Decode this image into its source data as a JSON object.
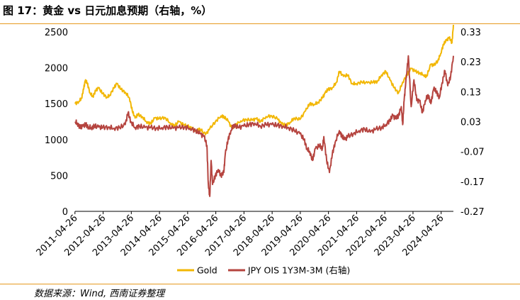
{
  "figure": {
    "title": "图 17：黄金 vs 日元加息预期（右轴，%）",
    "source": "数据来源：Wind, 西南证券整理"
  },
  "chart_data": {
    "type": "line",
    "title": "黄金 vs 日元加息预期（右轴，%）",
    "x_tick_labels": [
      "2011-04-26",
      "2012-04-26",
      "2013-04-26",
      "2014-04-26",
      "2015-04-26",
      "2016-04-26",
      "2017-04-26",
      "2018-04-26",
      "2019-04-26",
      "2020-04-26",
      "2021-04-26",
      "2022-04-26",
      "2023-04-26",
      "2024-04-26"
    ],
    "x_range": [
      2011.32,
      2024.75
    ],
    "y_left": {
      "range": [
        0,
        2500
      ],
      "ticks": [
        "0",
        "500",
        "1000",
        "1500",
        "2000",
        "2500"
      ]
    },
    "y_right": {
      "range": [
        -0.27,
        0.33
      ],
      "ticks": [
        "-0.27",
        "-0.17",
        "-0.07",
        "0.03",
        "0.13",
        "0.23",
        "0.33"
      ]
    },
    "grid": false,
    "legend_position": "bottom",
    "colors": {
      "gold": "#f2b705",
      "jpy": "#b5443f"
    },
    "series": [
      {
        "name": "Gold",
        "axis": "left",
        "x": [
          2011.32,
          2011.45,
          2011.55,
          2011.62,
          2011.68,
          2011.75,
          2011.85,
          2011.95,
          2012.05,
          2012.15,
          2012.3,
          2012.45,
          2012.55,
          2012.7,
          2012.8,
          2012.95,
          2013.1,
          2013.25,
          2013.35,
          2013.45,
          2013.55,
          2013.7,
          2013.85,
          2014.0,
          2014.15,
          2014.3,
          2014.5,
          2014.7,
          2014.85,
          2015.0,
          2015.2,
          2015.4,
          2015.6,
          2015.75,
          2015.95,
          2016.1,
          2016.3,
          2016.5,
          2016.6,
          2016.75,
          2016.9,
          2017.0,
          2017.2,
          2017.4,
          2017.6,
          2017.75,
          2017.9,
          2018.1,
          2018.3,
          2018.5,
          2018.65,
          2018.8,
          2018.95,
          2019.1,
          2019.3,
          2019.5,
          2019.65,
          2019.8,
          2019.95,
          2020.1,
          2020.2,
          2020.3,
          2020.45,
          2020.6,
          2020.7,
          2020.85,
          2021.0,
          2021.15,
          2021.3,
          2021.5,
          2021.7,
          2021.9,
          2022.05,
          2022.2,
          2022.35,
          2022.5,
          2022.65,
          2022.8,
          2022.95,
          2023.1,
          2023.25,
          2023.4,
          2023.55,
          2023.7,
          2023.8,
          2023.95,
          2024.05,
          2024.2,
          2024.3,
          2024.4,
          2024.5,
          2024.6,
          2024.7,
          2024.75
        ],
        "values": [
          1500,
          1530,
          1580,
          1700,
          1820,
          1790,
          1650,
          1600,
          1680,
          1720,
          1640,
          1590,
          1620,
          1720,
          1780,
          1700,
          1660,
          1580,
          1400,
          1300,
          1350,
          1320,
          1250,
          1220,
          1300,
          1290,
          1310,
          1230,
          1190,
          1250,
          1200,
          1180,
          1120,
          1150,
          1070,
          1150,
          1250,
          1330,
          1320,
          1260,
          1150,
          1200,
          1260,
          1280,
          1270,
          1290,
          1250,
          1320,
          1330,
          1290,
          1220,
          1200,
          1240,
          1300,
          1280,
          1400,
          1500,
          1490,
          1520,
          1580,
          1650,
          1700,
          1720,
          1800,
          1950,
          1880,
          1900,
          1780,
          1780,
          1800,
          1790,
          1800,
          1810,
          1900,
          1950,
          1830,
          1720,
          1650,
          1800,
          1900,
          1990,
          1950,
          1930,
          1900,
          1880,
          2050,
          2030,
          2100,
          2200,
          2330,
          2380,
          2420,
          2350,
          2600
        ]
      },
      {
        "name": "JPY OIS 1Y3M-3M (右轴)",
        "axis": "right",
        "x": [
          2011.32,
          2011.4,
          2011.5,
          2011.6,
          2011.7,
          2011.8,
          2011.9,
          2012.0,
          2012.15,
          2012.3,
          2012.5,
          2012.7,
          2012.9,
          2013.1,
          2013.2,
          2013.3,
          2013.45,
          2013.6,
          2013.8,
          2014.0,
          2014.2,
          2014.4,
          2014.6,
          2014.8,
          2015.0,
          2015.2,
          2015.4,
          2015.6,
          2015.75,
          2015.9,
          2016.0,
          2016.05,
          2016.1,
          2016.15,
          2016.2,
          2016.3,
          2016.4,
          2016.5,
          2016.6,
          2016.65,
          2016.75,
          2016.85,
          2016.95,
          2017.1,
          2017.3,
          2017.5,
          2017.7,
          2017.9,
          2018.1,
          2018.3,
          2018.5,
          2018.7,
          2018.9,
          2019.1,
          2019.3,
          2019.45,
          2019.55,
          2019.65,
          2019.75,
          2019.85,
          2020.0,
          2020.1,
          2020.15,
          2020.25,
          2020.35,
          2020.45,
          2020.55,
          2020.7,
          2020.8,
          2020.9,
          2021.0,
          2021.2,
          2021.4,
          2021.6,
          2021.8,
          2022.0,
          2022.2,
          2022.35,
          2022.5,
          2022.6,
          2022.7,
          2022.8,
          2022.9,
          2022.95,
          2023.0,
          2023.05,
          2023.15,
          2023.25,
          2023.35,
          2023.45,
          2023.55,
          2023.65,
          2023.75,
          2023.85,
          2023.95,
          2024.05,
          2024.15,
          2024.25,
          2024.35,
          2024.45,
          2024.55,
          2024.65,
          2024.75
        ],
        "values": [
          0.03,
          0.025,
          0.01,
          0.015,
          0.02,
          0.012,
          0.01,
          0.015,
          0.012,
          0.01,
          0.012,
          0.008,
          0.01,
          0.02,
          0.06,
          0.03,
          0.01,
          0.015,
          0.01,
          0.01,
          0.008,
          0.01,
          0.012,
          0.008,
          0.01,
          0.012,
          0.008,
          0.0,
          -0.01,
          -0.02,
          -0.05,
          -0.18,
          -0.22,
          -0.1,
          -0.18,
          -0.15,
          -0.13,
          -0.15,
          -0.14,
          -0.08,
          -0.03,
          0.0,
          0.02,
          0.01,
          0.015,
          0.02,
          0.025,
          0.015,
          0.02,
          0.02,
          0.018,
          0.015,
          0.01,
          0.0,
          -0.01,
          -0.03,
          -0.06,
          -0.07,
          -0.1,
          -0.06,
          -0.05,
          -0.06,
          -0.02,
          -0.1,
          -0.14,
          -0.08,
          -0.04,
          0.0,
          -0.02,
          -0.03,
          -0.02,
          -0.01,
          0.0,
          0.005,
          -0.005,
          0.005,
          0.01,
          0.02,
          0.035,
          0.05,
          0.04,
          0.05,
          0.08,
          0.02,
          0.1,
          0.15,
          0.25,
          0.08,
          0.17,
          0.1,
          0.1,
          0.06,
          0.1,
          0.12,
          0.09,
          0.14,
          0.13,
          0.11,
          0.16,
          0.2,
          0.15,
          0.18,
          0.25
        ]
      }
    ]
  }
}
